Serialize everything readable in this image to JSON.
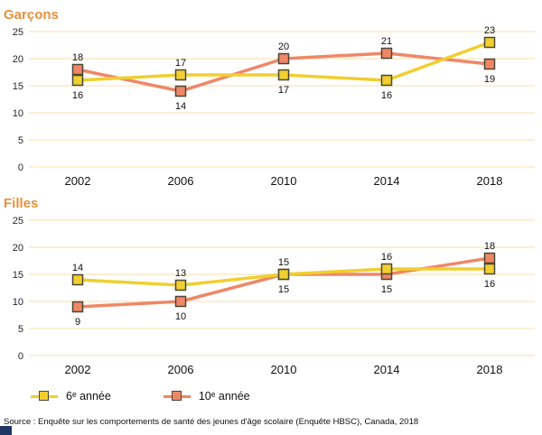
{
  "page": {
    "source_text": "Source : Enquête sur les comportements de santé des jeunes d'âge scolaire (Enquête HBSC), Canada, 2018"
  },
  "colors": {
    "title_orange": "#E7913B",
    "series_yellow": "#F0CF2F",
    "series_salmon": "#EF8767",
    "gridline": "#F9E5BC",
    "marker_outline": "#4B4737",
    "logo_navy": "#1F3763"
  },
  "chart_data": [
    {
      "type": "line",
      "title": "Garçons",
      "categories": [
        "2002",
        "2006",
        "2010",
        "2014",
        "2018"
      ],
      "series": [
        {
          "name": "6ᵉ année",
          "values": [
            16,
            17,
            17,
            16,
            23
          ],
          "color": "#F0CF2F"
        },
        {
          "name": "10ᵉ année",
          "values": [
            18,
            14,
            20,
            21,
            19
          ],
          "color": "#EF8767"
        }
      ],
      "xlabel": "",
      "ylabel": "",
      "ylim": [
        0,
        25
      ],
      "yticks": [
        0,
        5,
        10,
        15,
        20,
        25
      ],
      "grid": true,
      "legend_position": "bottom"
    },
    {
      "type": "line",
      "title": "Filles",
      "categories": [
        "2002",
        "2006",
        "2010",
        "2014",
        "2018"
      ],
      "series": [
        {
          "name": "6ᵉ année",
          "values": [
            14,
            13,
            15,
            16,
            16
          ],
          "color": "#F0CF2F"
        },
        {
          "name": "10ᵉ année",
          "values": [
            9,
            10,
            15,
            15,
            18
          ],
          "color": "#EF8767"
        }
      ],
      "xlabel": "",
      "ylabel": "",
      "ylim": [
        0,
        25
      ],
      "yticks": [
        0,
        5,
        10,
        15,
        20,
        25
      ],
      "grid": true,
      "legend_position": "bottom"
    }
  ]
}
